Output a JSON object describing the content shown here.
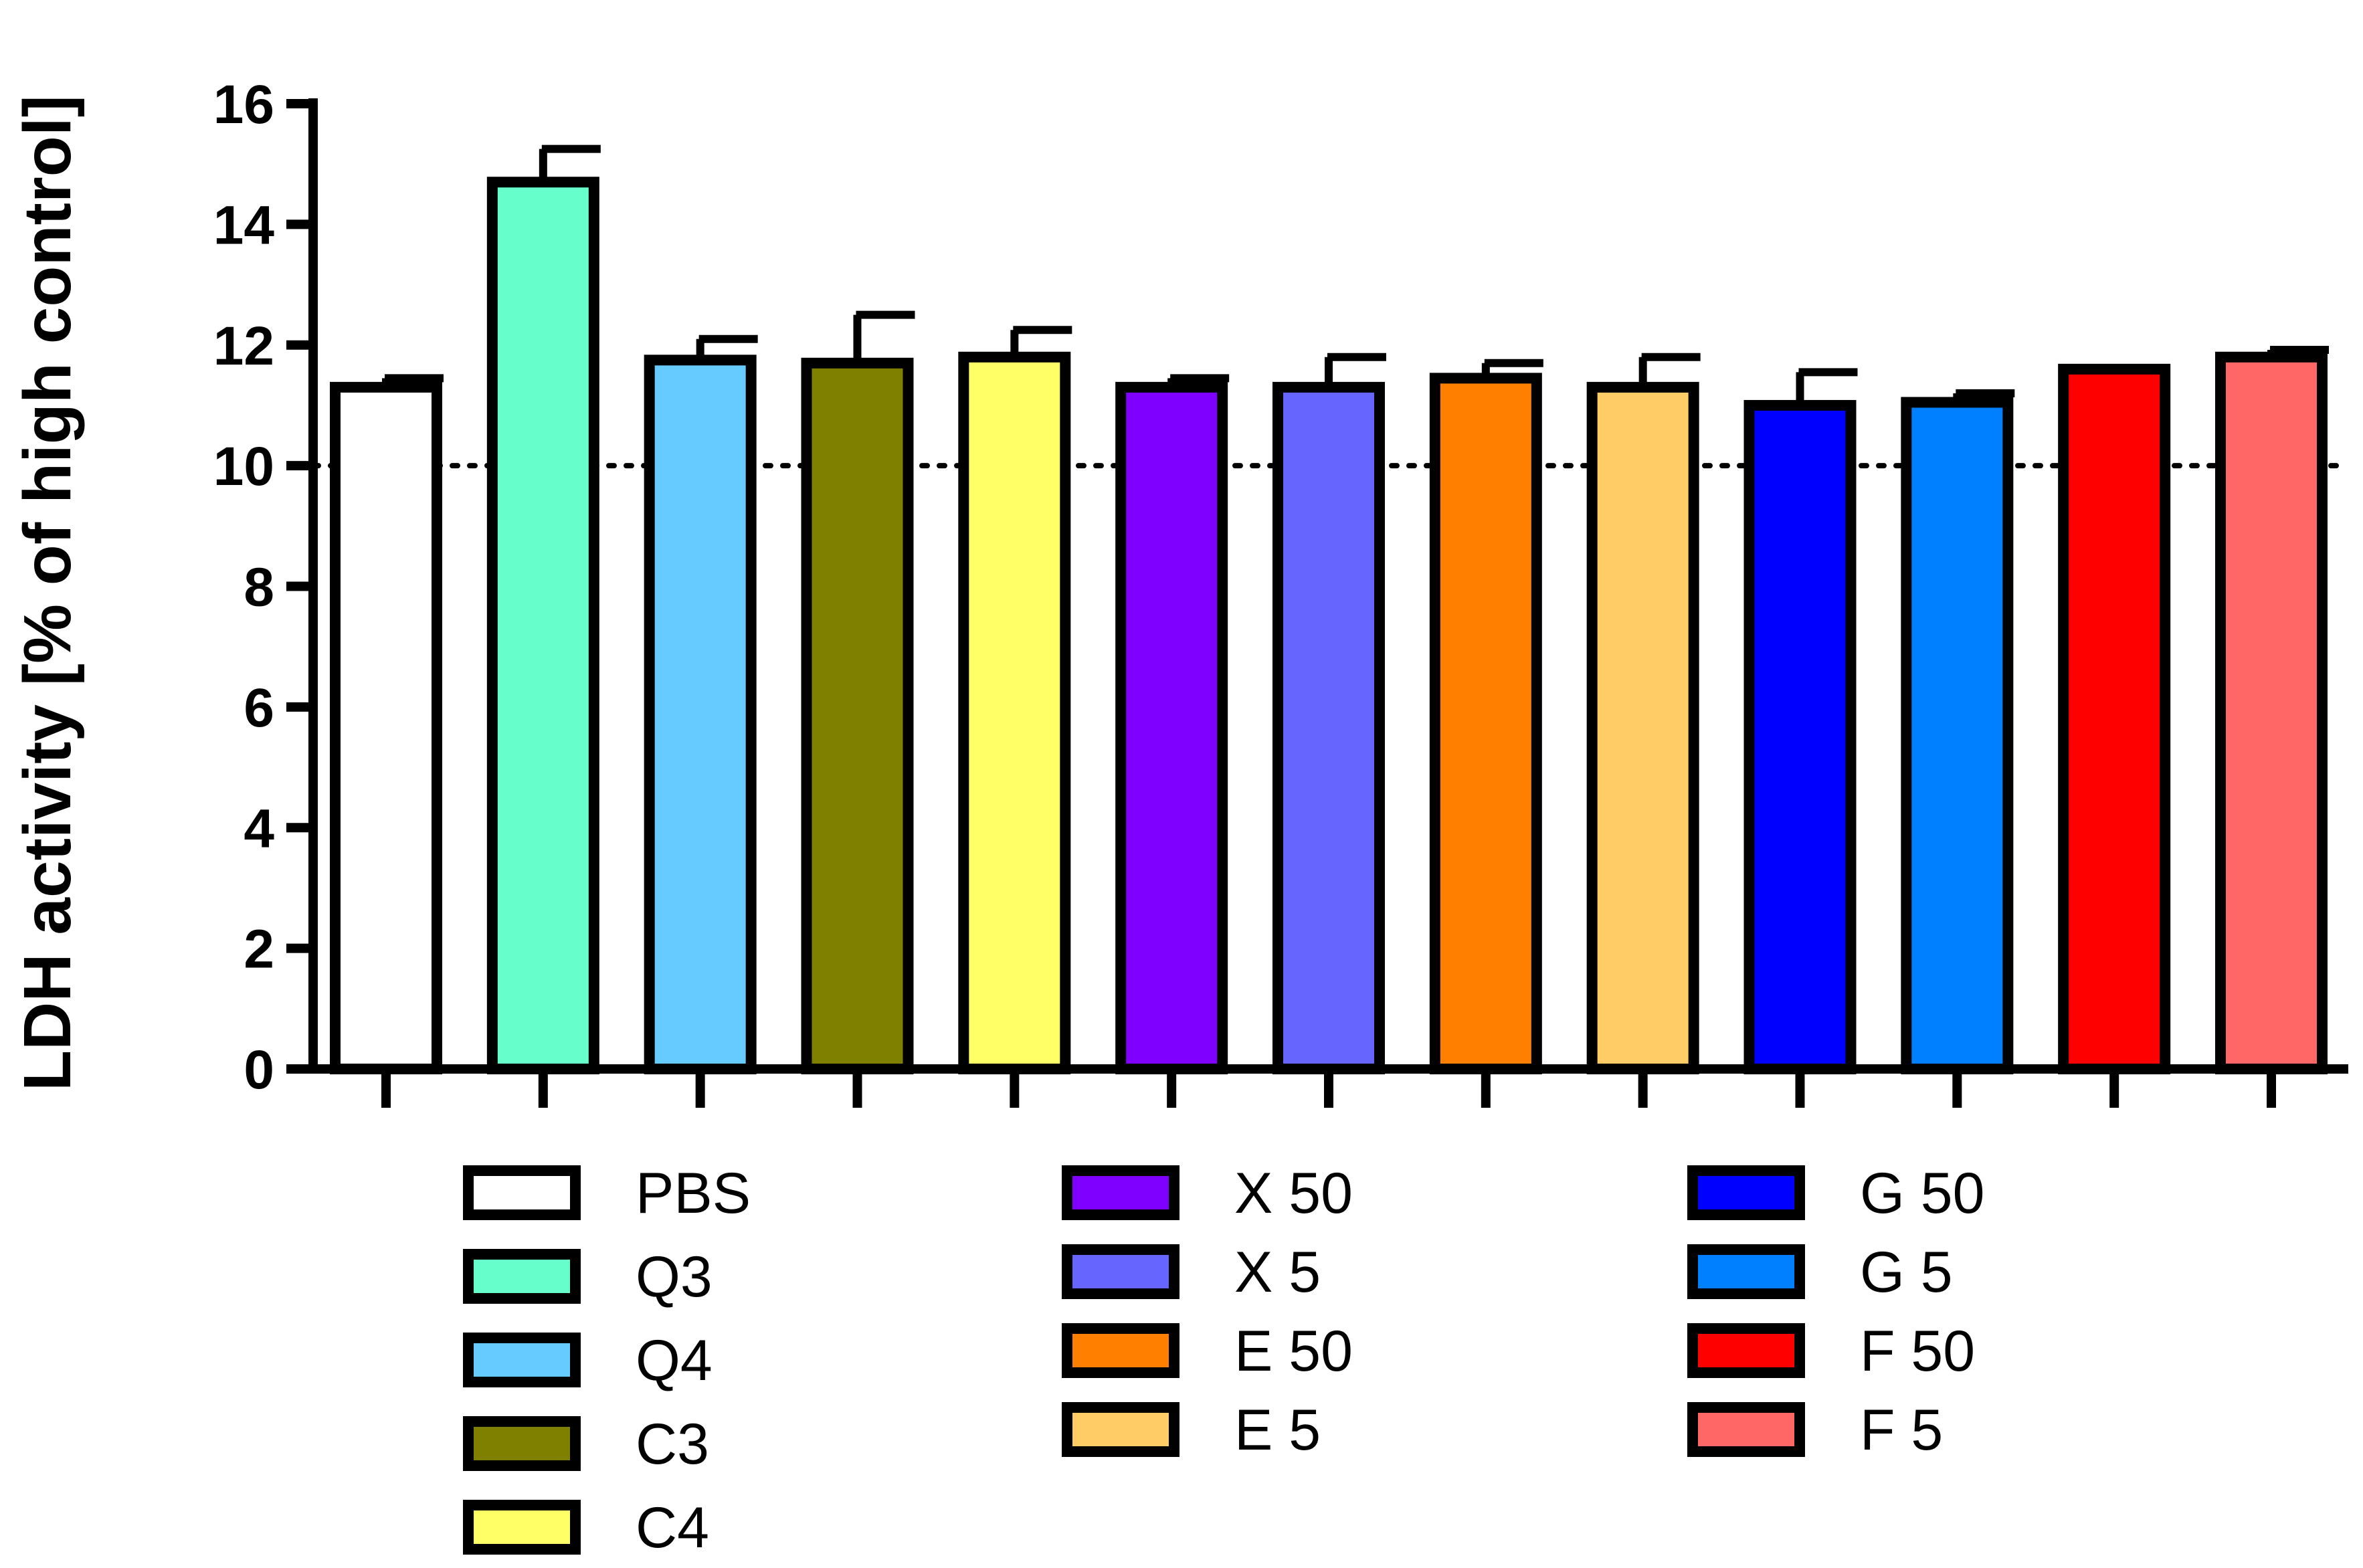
{
  "chart_data": {
    "type": "bar",
    "title": "",
    "xlabel": "",
    "ylabel": "LDH activity [% of high control]",
    "ylim": [
      0,
      16
    ],
    "yticks": [
      "0",
      "2",
      "4",
      "6",
      "8",
      "10",
      "12",
      "14",
      "16"
    ],
    "reference_line": {
      "value": 10,
      "style": "dotted"
    },
    "grid": false,
    "legend_position": "bottom",
    "categories": [
      "PBS",
      "Q3",
      "Q4",
      "C3",
      "C4",
      "X 50",
      "X 5",
      "E 50",
      "E 5",
      "G 50",
      "G 5",
      "F 50",
      "F 5"
    ],
    "values": [
      11.3,
      14.7,
      11.75,
      11.7,
      11.8,
      11.3,
      11.3,
      11.45,
      11.3,
      11.0,
      11.05,
      11.6,
      11.8
    ],
    "errors": [
      0.15,
      0.55,
      0.35,
      0.8,
      0.45,
      0.15,
      0.5,
      0.25,
      0.5,
      0.55,
      0.15,
      0.0,
      0.12
    ],
    "colors": [
      "#ffffff",
      "#66ffcc",
      "#66ccff",
      "#808000",
      "#ffff66",
      "#8000ff",
      "#6666ff",
      "#ff8000",
      "#ffcc66",
      "#0000ff",
      "#0080ff",
      "#ff0000",
      "#ff6666"
    ],
    "legend_columns": [
      [
        "PBS",
        "Q3",
        "Q4",
        "C3",
        "C4"
      ],
      [
        "X 50",
        "X 5",
        "E 50",
        "E 5"
      ],
      [
        "G 50",
        "G 5",
        "F 50",
        "F 5"
      ]
    ]
  }
}
